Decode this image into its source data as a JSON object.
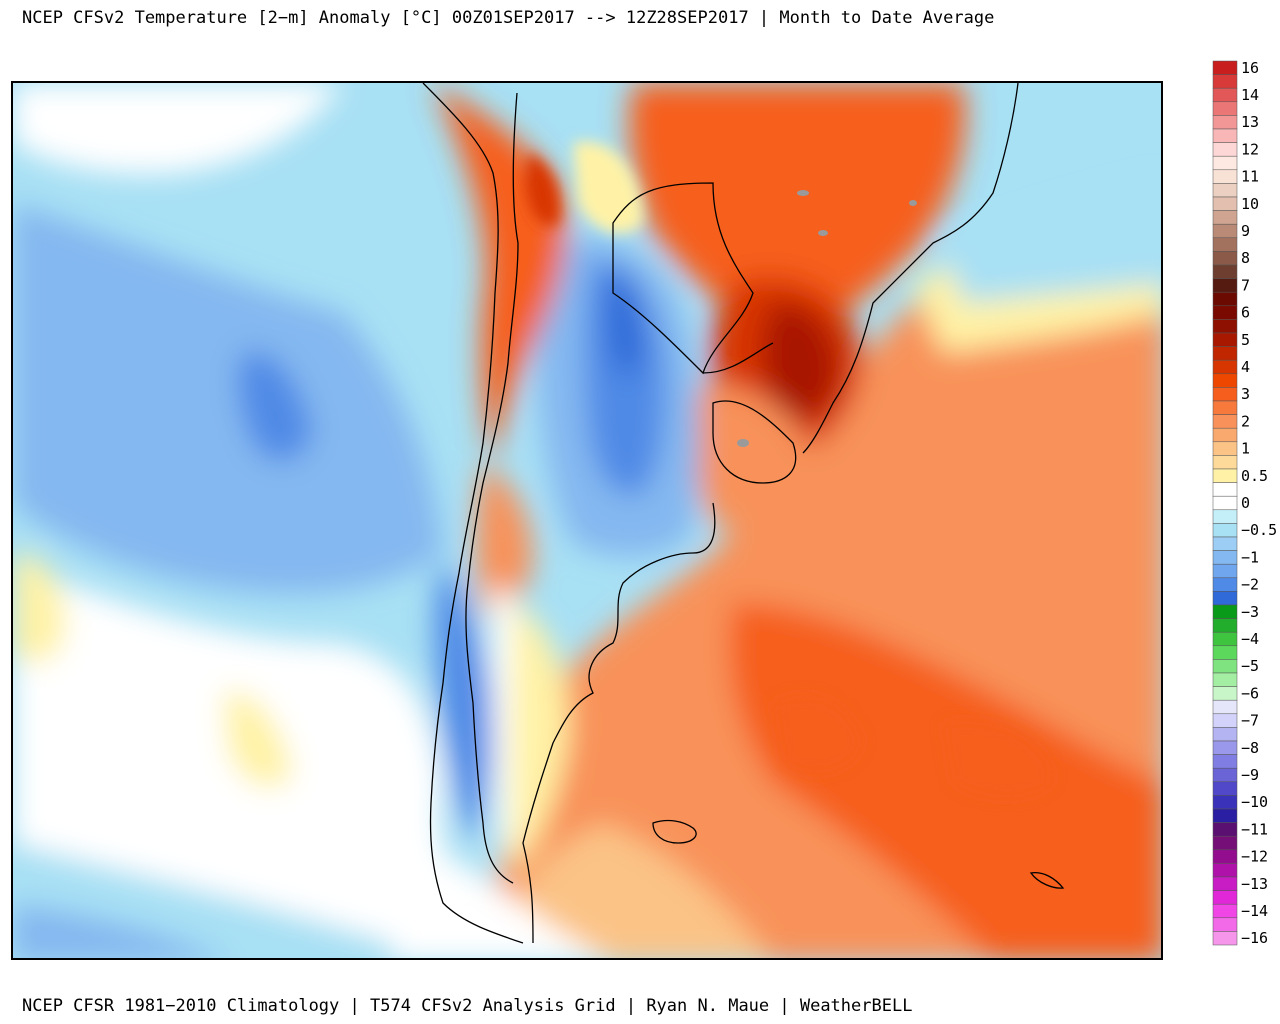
{
  "title": "NCEP CFSv2 Temperature [2−m] Anomaly  [°C] 00Z01SEP2017 --> 12Z28SEP2017 | Month to Date Average",
  "footer": "NCEP CFSR 1981−2010 Climatology | T574 CFSv2 Analysis Grid | Ryan N. Maue | WeatherBELL",
  "legend": {
    "entries": [
      {
        "label": "16",
        "color": "#c81e1e"
      },
      {
        "label": "",
        "color": "#d83a3a"
      },
      {
        "label": "14",
        "color": "#e25858"
      },
      {
        "label": "",
        "color": "#ea7676"
      },
      {
        "label": "13",
        "color": "#f29696"
      },
      {
        "label": "",
        "color": "#f8b6b6"
      },
      {
        "label": "12",
        "color": "#fdd6d6"
      },
      {
        "label": "",
        "color": "#fde8e2"
      },
      {
        "label": "11",
        "color": "#f8e2d6"
      },
      {
        "label": "",
        "color": "#ecd0c2"
      },
      {
        "label": "10",
        "color": "#e2bfae"
      },
      {
        "label": "",
        "color": "#cfa592"
      },
      {
        "label": "9",
        "color": "#b98a76"
      },
      {
        "label": "",
        "color": "#a3725e"
      },
      {
        "label": "8",
        "color": "#8b5a48"
      },
      {
        "label": "",
        "color": "#6e3e30"
      },
      {
        "label": "7",
        "color": "#551a10"
      },
      {
        "label": "",
        "color": "#6a0a00"
      },
      {
        "label": "6",
        "color": "#7a0a00"
      },
      {
        "label": "",
        "color": "#8e1000"
      },
      {
        "label": "5",
        "color": "#a81800"
      },
      {
        "label": "",
        "color": "#c02600"
      },
      {
        "label": "4",
        "color": "#d83600"
      },
      {
        "label": "",
        "color": "#ee4800"
      },
      {
        "label": "3",
        "color": "#f65e1e"
      },
      {
        "label": "",
        "color": "#f77a3c"
      },
      {
        "label": "2",
        "color": "#f8925a"
      },
      {
        "label": "",
        "color": "#f9a86e"
      },
      {
        "label": "1",
        "color": "#fbc386"
      },
      {
        "label": "",
        "color": "#fdda9a"
      },
      {
        "label": "0.5",
        "color": "#fff2a6"
      },
      {
        "label": "",
        "color": "#ffffff"
      },
      {
        "label": "0",
        "color": "#ffffff"
      },
      {
        "label": "",
        "color": "#c4eef8"
      },
      {
        "label": "−0.5",
        "color": "#a8e0f4"
      },
      {
        "label": "",
        "color": "#9ccdf4"
      },
      {
        "label": "−1",
        "color": "#84b8f0"
      },
      {
        "label": "",
        "color": "#6fa6ee"
      },
      {
        "label": "−2",
        "color": "#4f8ae6"
      },
      {
        "label": "",
        "color": "#2f6ad8"
      },
      {
        "label": "−3",
        "color": "#0a9a1a"
      },
      {
        "label": "",
        "color": "#22ad2c"
      },
      {
        "label": "−4",
        "color": "#3ec43e"
      },
      {
        "label": "",
        "color": "#5cd85c"
      },
      {
        "label": "−5",
        "color": "#7fe47f"
      },
      {
        "label": "",
        "color": "#a4eea4"
      },
      {
        "label": "−6",
        "color": "#c8f6c8"
      },
      {
        "label": "",
        "color": "#e6e6fa"
      },
      {
        "label": "−7",
        "color": "#d2d2fa"
      },
      {
        "label": "",
        "color": "#b4b4f2"
      },
      {
        "label": "−8",
        "color": "#9a98ea"
      },
      {
        "label": "",
        "color": "#807ee2"
      },
      {
        "label": "−9",
        "color": "#6a64d6"
      },
      {
        "label": "",
        "color": "#5048c8"
      },
      {
        "label": "−10",
        "color": "#3a32b8"
      },
      {
        "label": "",
        "color": "#2a1fa2"
      },
      {
        "label": "−11",
        "color": "#5a1070"
      },
      {
        "label": "",
        "color": "#760e78"
      },
      {
        "label": "−12",
        "color": "#920e8e"
      },
      {
        "label": "",
        "color": "#ae12a8"
      },
      {
        "label": "−13",
        "color": "#c81cc4"
      },
      {
        "label": "",
        "color": "#e028d8"
      },
      {
        "label": "−14",
        "color": "#f046e6"
      },
      {
        "label": "",
        "color": "#f26ae8"
      },
      {
        "label": "−16",
        "color": "#f596ea"
      }
    ]
  },
  "map": {
    "region": "southern South America",
    "colors": {
      "ocean_cool": "#a8e0f4",
      "ocean_cold": "#84b8f0",
      "cold_core": "#4f8ae6",
      "coldest": "#2f6ad8",
      "neutral": "#ffffff",
      "slight_warm": "#fff2a6",
      "warm_light": "#fbc386",
      "warm": "#f8925a",
      "warmer": "#f65e1e",
      "hot": "#d83600",
      "hottest": "#a81800",
      "coastline": "#000000",
      "lakes": "#9a9a9a"
    }
  }
}
